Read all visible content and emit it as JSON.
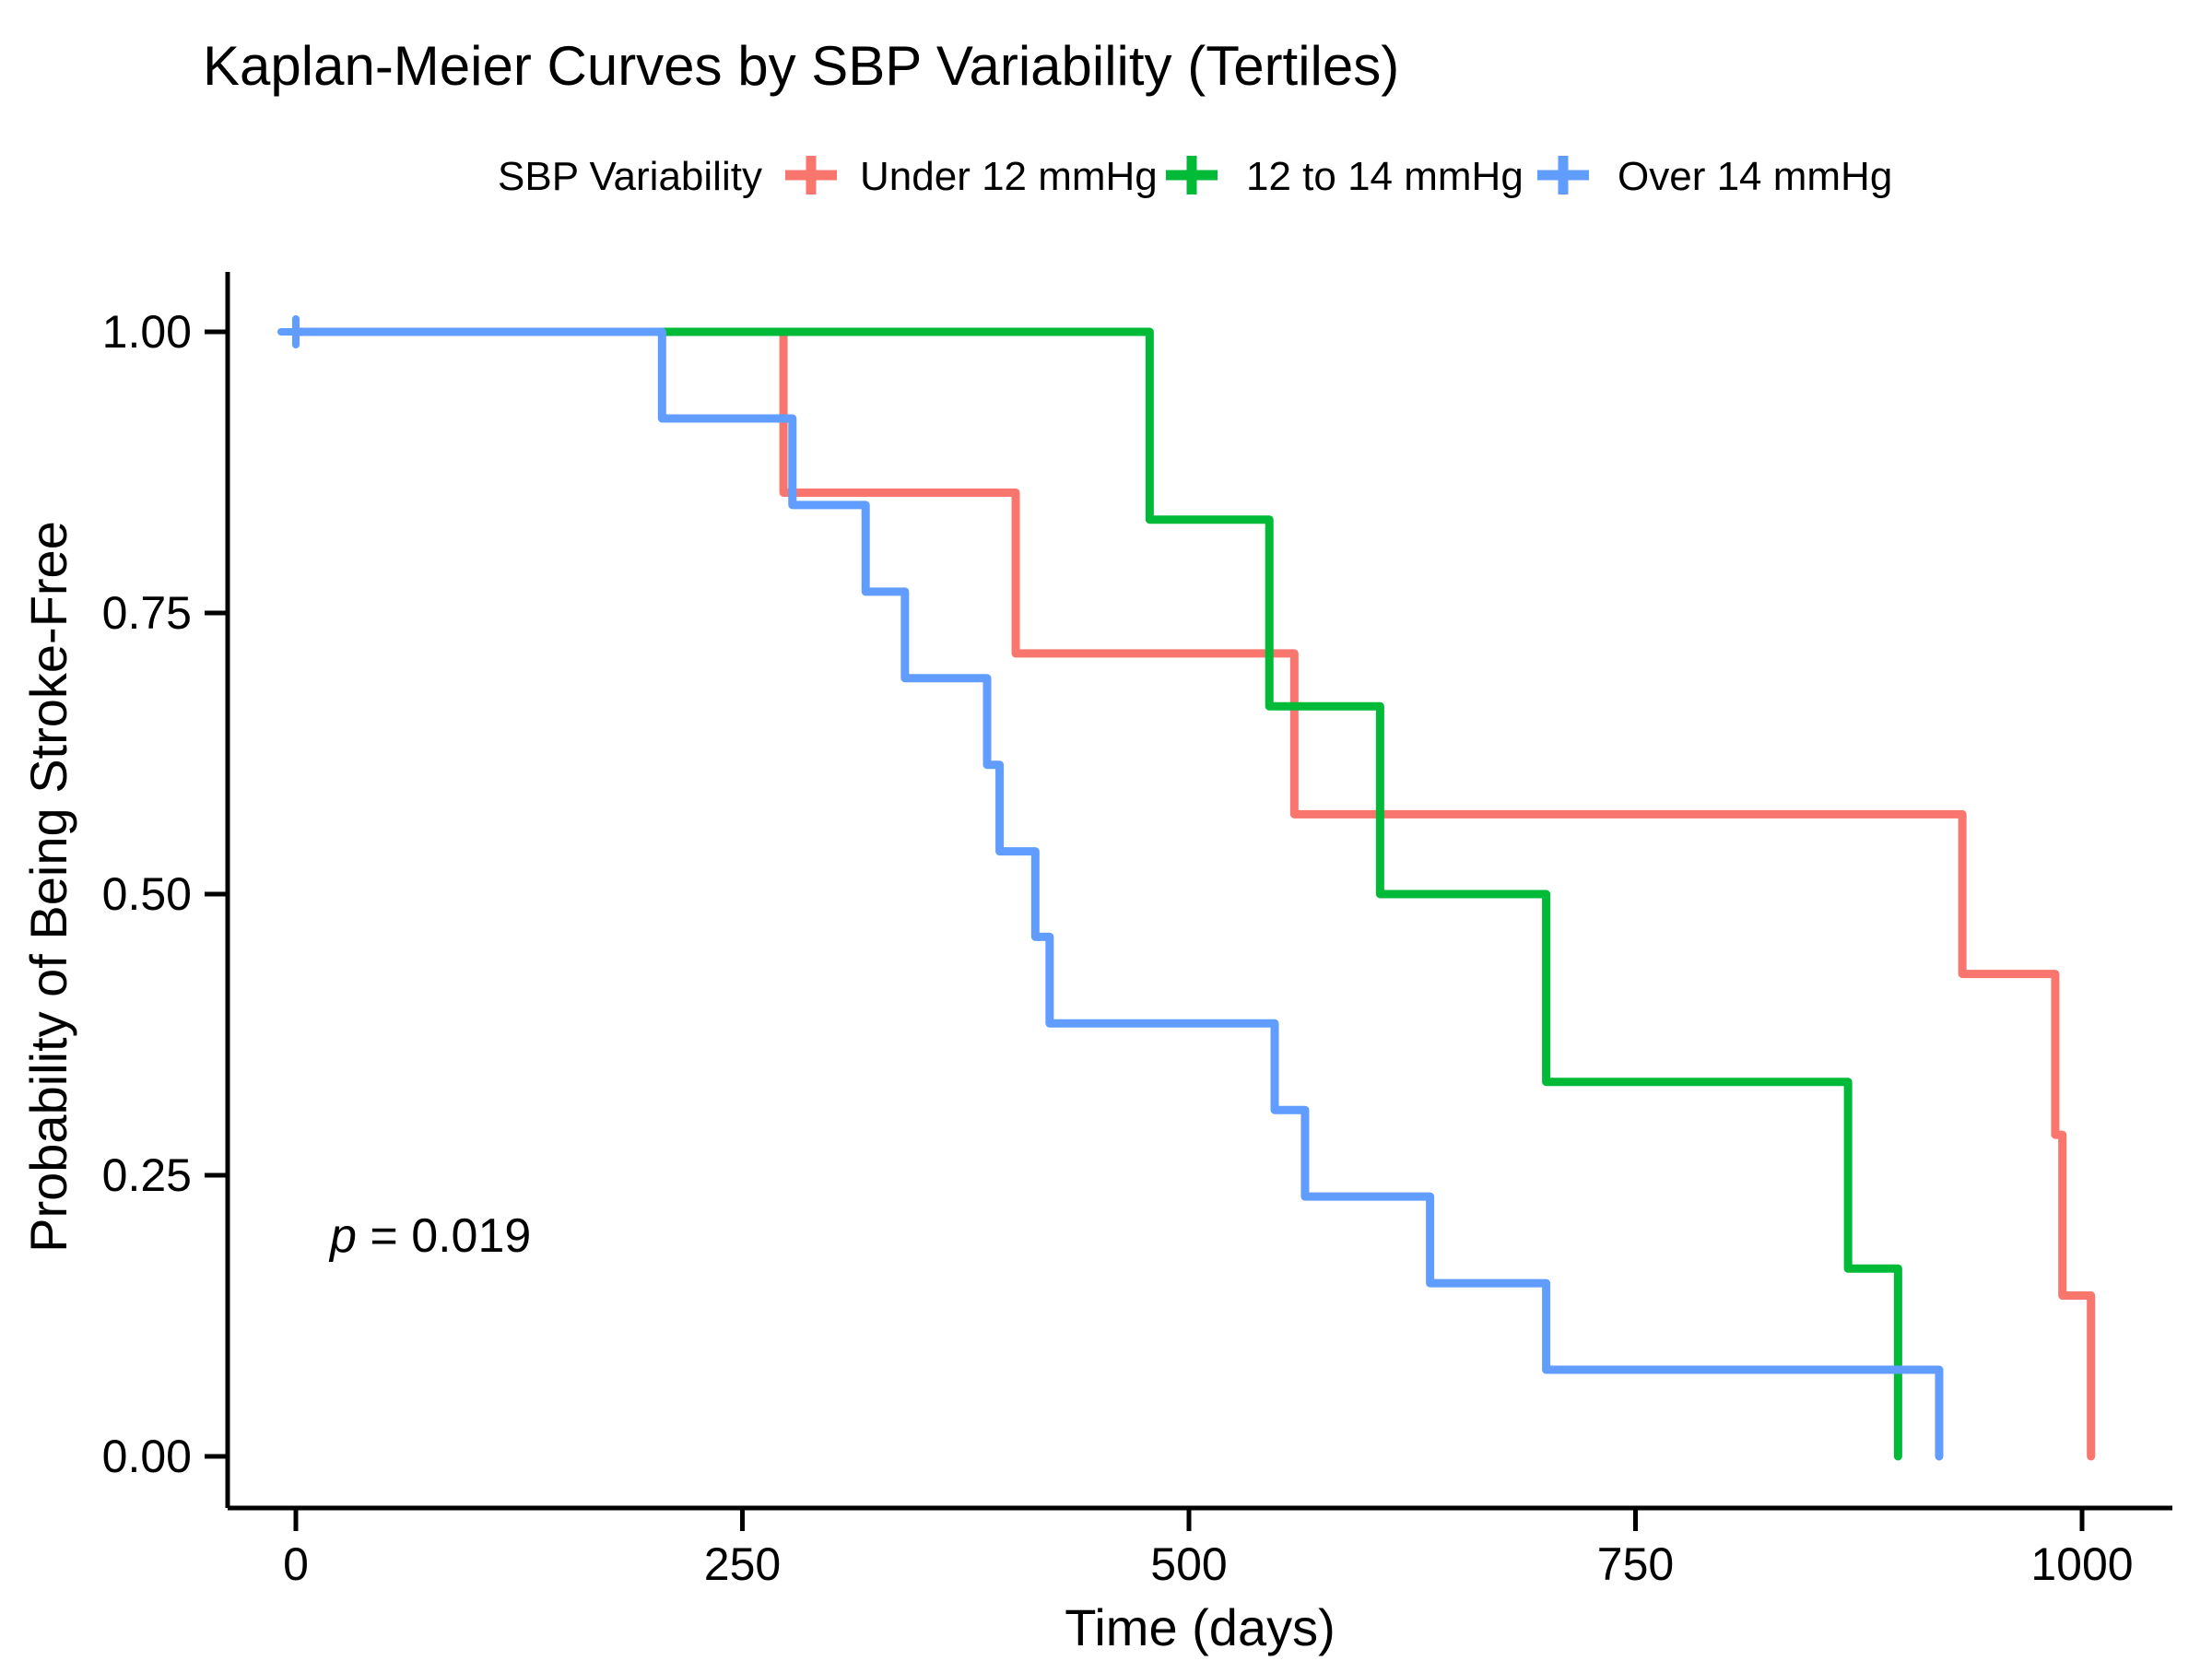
{
  "title": "Kaplan-Meier Curves by SBP Variability (Tertiles)",
  "legend": {
    "title": "SBP Variability",
    "entries": [
      {
        "label": "Under 12 mmHg",
        "color": "#F8766D"
      },
      {
        "label": "12 to 14 mmHg",
        "color": "#00BA38"
      },
      {
        "label": "Over 14 mmHg",
        "color": "#619CFF"
      }
    ]
  },
  "annotation": {
    "p_italic": "p",
    "p_text": " = 0.019"
  },
  "axes": {
    "x_label": "Time (days)",
    "y_label": "Probability of Being Stroke-Free",
    "x_ticks": [
      {
        "value": 0,
        "label": "0"
      },
      {
        "value": 250,
        "label": "250"
      },
      {
        "value": 500,
        "label": "500"
      },
      {
        "value": 750,
        "label": "750"
      },
      {
        "value": 1000,
        "label": "1000"
      }
    ],
    "y_ticks": [
      {
        "value": 1.0,
        "label": "1.00"
      },
      {
        "value": 0.75,
        "label": "0.75"
      },
      {
        "value": 0.5,
        "label": "0.50"
      },
      {
        "value": 0.25,
        "label": "0.25"
      },
      {
        "value": 0.0,
        "label": "0.00"
      }
    ]
  },
  "chart_data": {
    "type": "line",
    "subtype": "kaplan-meier-step",
    "title": "Kaplan-Meier Curves by SBP Variability (Tertiles)",
    "xlabel": "Time (days)",
    "ylabel": "Probability of Being Stroke-Free",
    "xlim": [
      0,
      1060
    ],
    "ylim": [
      0,
      1
    ],
    "grid": false,
    "legend_position": "top",
    "legend_title": "SBP Variability",
    "p_value_text": "p = 0.019",
    "series": [
      {
        "name": "Under 12 mmHg",
        "color": "#F8766D",
        "start": [
          0,
          1.0
        ],
        "steps": [
          [
            273,
            0.857
          ],
          [
            403,
            0.714
          ],
          [
            559,
            0.571
          ],
          [
            933,
            0.429
          ],
          [
            985,
            0.286
          ],
          [
            989,
            0.143
          ],
          [
            1005,
            0.0
          ]
        ]
      },
      {
        "name": "12 to 14 mmHg",
        "color": "#00BA38",
        "start": [
          0,
          1.0
        ],
        "steps": [
          [
            478,
            0.833
          ],
          [
            545,
            0.667
          ],
          [
            607,
            0.5
          ],
          [
            700,
            0.333
          ],
          [
            869,
            0.167
          ],
          [
            897,
            0.0
          ]
        ]
      },
      {
        "name": "Over 14 mmHg",
        "color": "#619CFF",
        "start": [
          0,
          1.0
        ],
        "steps": [
          [
            205,
            0.923
          ],
          [
            278,
            0.846
          ],
          [
            319,
            0.769
          ],
          [
            341,
            0.692
          ],
          [
            387,
            0.615
          ],
          [
            394,
            0.538
          ],
          [
            414,
            0.462
          ],
          [
            422,
            0.385
          ],
          [
            548,
            0.308
          ],
          [
            565,
            0.231
          ],
          [
            635,
            0.154
          ],
          [
            700,
            0.077
          ],
          [
            920,
            0.0
          ]
        ]
      }
    ],
    "censor_marks": [
      {
        "series": "Over 14 mmHg",
        "time": 0,
        "probability": 1.0,
        "color": "#619CFF"
      }
    ]
  }
}
